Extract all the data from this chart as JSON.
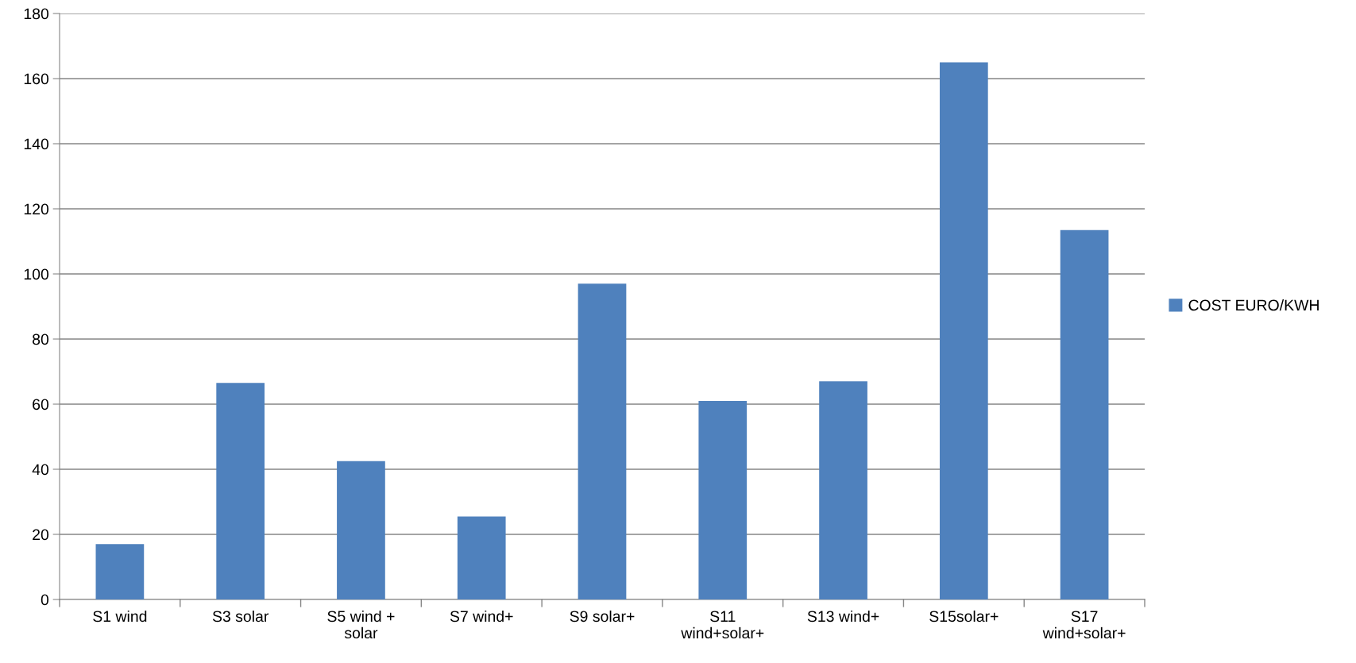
{
  "chart_data": {
    "type": "bar",
    "categories": [
      "S1 wind",
      "S3 solar",
      "S5 wind +\nsolar",
      "S7 wind+",
      "S9 solar+",
      "S11\nwind+solar+",
      "S13 wind+",
      "S15solar+",
      "S17\nwind+solar+"
    ],
    "series": [
      {
        "name": "COST EURO/KWH",
        "color": "#4f81bd",
        "values": [
          17,
          66.5,
          42.5,
          25.5,
          97,
          61,
          67,
          165,
          113.5
        ]
      }
    ],
    "ylim": [
      0,
      180
    ],
    "yticks": [
      0,
      20,
      40,
      60,
      80,
      100,
      120,
      140,
      160,
      180
    ],
    "grid": "y",
    "legend": "right"
  }
}
